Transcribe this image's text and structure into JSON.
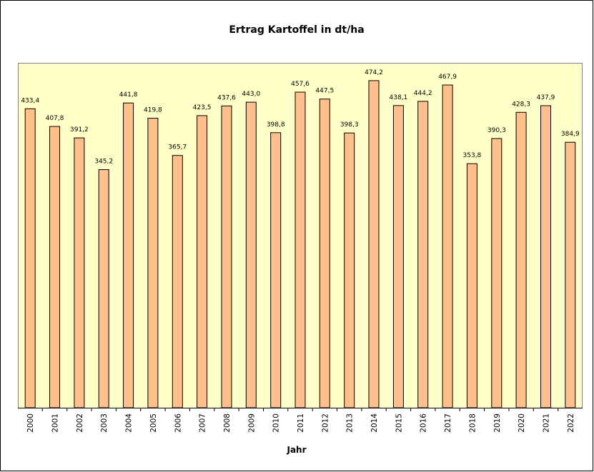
{
  "chart_data": {
    "type": "bar",
    "title": "Ertrag Kartoffel in dt/ha",
    "xlabel": "Jahr",
    "ylabel": "",
    "categories": [
      "2000",
      "2001",
      "2002",
      "2003",
      "2004",
      "2005",
      "2006",
      "2007",
      "2008",
      "2009",
      "2010",
      "2011",
      "2012",
      "2013",
      "2014",
      "2015",
      "2016",
      "2017",
      "2018",
      "2019",
      "2020",
      "2021",
      "2022"
    ],
    "values": [
      433.4,
      407.8,
      391.2,
      345.2,
      441.8,
      419.8,
      365.7,
      423.5,
      437.6,
      443.0,
      398.8,
      457.6,
      447.5,
      398.3,
      474.2,
      438.1,
      444.2,
      467.9,
      353.8,
      390.3,
      428.3,
      437.9,
      384.9
    ],
    "value_labels": [
      "433,4",
      "407,8",
      "391,2",
      "345,2",
      "441,8",
      "419,8",
      "365,7",
      "423,5",
      "437,6",
      "443,0",
      "398,8",
      "457,6",
      "447,5",
      "398,3",
      "474,2",
      "438,1",
      "444,2",
      "467,9",
      "353,8",
      "390,3",
      "428,3",
      "437,9",
      "384,9"
    ],
    "ylim": [
      0,
      500
    ],
    "grid": false,
    "legend": "none",
    "colors": {
      "bar_fill": "#FFC08C",
      "bar_stroke": "#000000",
      "plot_background": "#FFFFC8",
      "outer_border": "#000000"
    }
  }
}
